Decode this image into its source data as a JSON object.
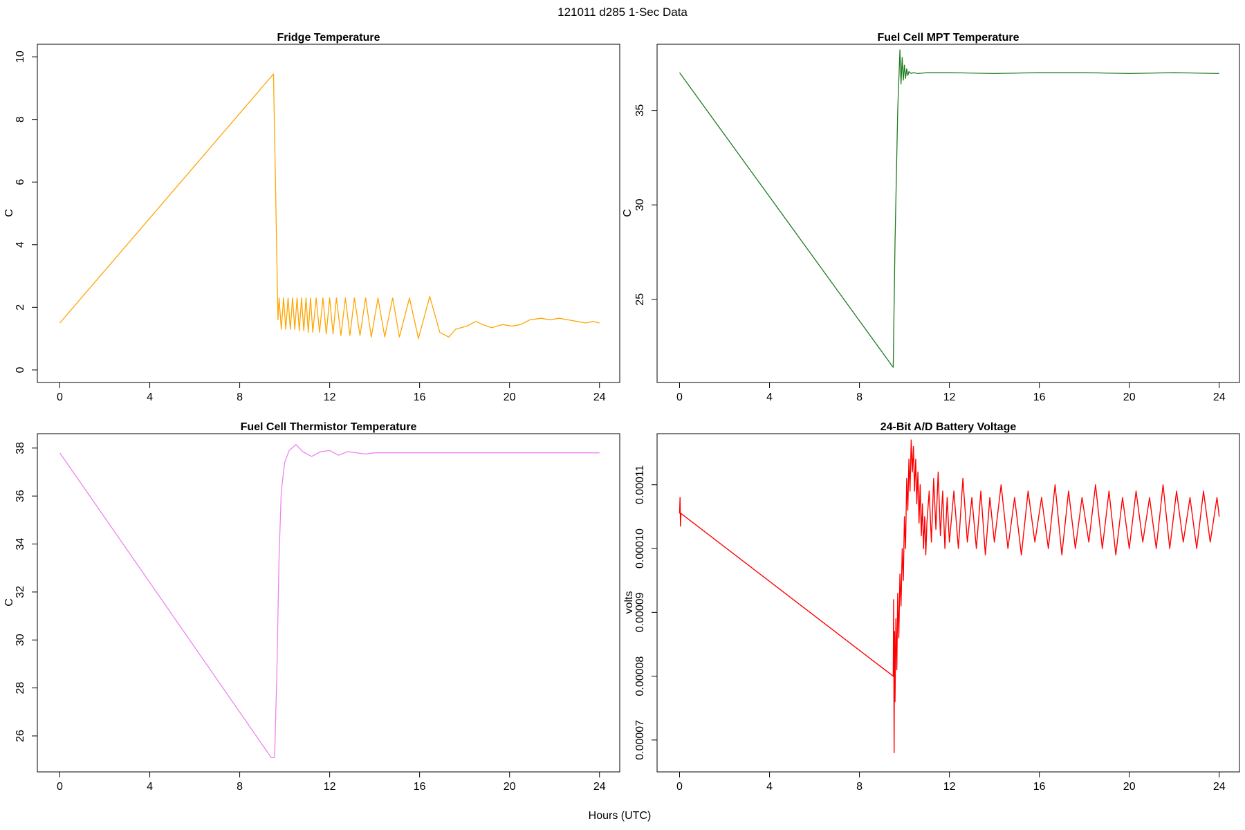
{
  "figure": {
    "title": "121011   d285   1-Sec Data",
    "xlabel": "Hours (UTC)"
  },
  "chart_data": [
    {
      "type": "line",
      "title": "Fridge Temperature",
      "xlabel": "",
      "ylabel": "C",
      "xlim": [
        -1,
        24.9
      ],
      "ylim": [
        -0.4,
        10.4
      ],
      "xticks": [
        0,
        4,
        8,
        12,
        16,
        20,
        24
      ],
      "yticks": [
        0,
        2,
        4,
        6,
        8,
        10
      ],
      "ytick_labels": [
        "0",
        "2",
        "4",
        "6",
        "8",
        "10"
      ],
      "color": "#FFA500",
      "grid": false,
      "series": [
        {
          "x": [
            0,
            9.5,
            9.7,
            9.75,
            9.85,
            9.95,
            10.05,
            10.15,
            10.25,
            10.35,
            10.45,
            10.55,
            10.65,
            10.75,
            10.85,
            10.95,
            11.05,
            11.15,
            11.25,
            11.4,
            11.55,
            11.7,
            11.85,
            12.0,
            12.15,
            12.3,
            12.5,
            12.7,
            12.9,
            13.1,
            13.35,
            13.6,
            13.85,
            14.15,
            14.45,
            14.8,
            15.1,
            15.55,
            15.95,
            16.45,
            16.9,
            17.3,
            17.6,
            18.1,
            18.5,
            18.8,
            19.2,
            19.7,
            20.1,
            20.5,
            20.9,
            21.4,
            21.8,
            22.2,
            22.6,
            23.0,
            23.4,
            23.7,
            24.0
          ],
          "y": [
            1.5,
            9.45,
            1.6,
            2.3,
            1.3,
            2.3,
            1.3,
            2.3,
            1.3,
            2.3,
            1.3,
            2.3,
            1.25,
            2.3,
            1.25,
            2.3,
            1.2,
            2.3,
            1.2,
            2.3,
            1.2,
            2.3,
            1.15,
            2.3,
            1.15,
            2.3,
            1.1,
            2.3,
            1.1,
            2.3,
            1.1,
            2.3,
            1.05,
            2.3,
            1.05,
            2.3,
            1.05,
            2.3,
            1.0,
            2.35,
            1.2,
            1.05,
            1.3,
            1.4,
            1.55,
            1.45,
            1.35,
            1.45,
            1.4,
            1.45,
            1.6,
            1.65,
            1.6,
            1.65,
            1.6,
            1.55,
            1.5,
            1.55,
            1.5
          ]
        }
      ]
    },
    {
      "type": "line",
      "title": "Fuel Cell MPT Temperature",
      "xlabel": "",
      "ylabel": "C",
      "xlim": [
        -1,
        24.9
      ],
      "ylim": [
        20.6,
        38.5
      ],
      "xticks": [
        0,
        4,
        8,
        12,
        16,
        20,
        24
      ],
      "yticks": [
        25,
        30,
        35
      ],
      "ytick_labels": [
        "25",
        "30",
        "35"
      ],
      "color": "#1E7B1E",
      "grid": false,
      "series": [
        {
          "x": [
            0,
            9.5,
            9.58,
            9.7,
            9.8,
            9.85,
            9.9,
            9.95,
            10.0,
            10.05,
            10.1,
            10.15,
            10.2,
            10.3,
            10.4,
            10.6,
            11.0,
            12.0,
            14.0,
            16.0,
            18.0,
            20.0,
            22.0,
            24.0
          ],
          "y": [
            37.0,
            21.4,
            28.0,
            35.0,
            38.2,
            36.4,
            37.8,
            36.6,
            37.4,
            36.7,
            37.2,
            36.85,
            37.05,
            36.95,
            37.0,
            36.95,
            37.0,
            37.0,
            36.95,
            37.0,
            37.0,
            36.95,
            37.0,
            36.95
          ]
        }
      ]
    },
    {
      "type": "line",
      "title": "Fuel Cell Thermistor Temperature",
      "xlabel": "",
      "ylabel": "C",
      "xlim": [
        -1,
        24.9
      ],
      "ylim": [
        24.5,
        38.6
      ],
      "xticks": [
        0,
        4,
        8,
        12,
        16,
        20,
        24
      ],
      "yticks": [
        26,
        28,
        30,
        32,
        34,
        36,
        38
      ],
      "ytick_labels": [
        "26",
        "28",
        "30",
        "32",
        "34",
        "36",
        "38"
      ],
      "color": "#EE82EE",
      "grid": false,
      "series": [
        {
          "x": [
            0,
            9.4,
            9.55,
            9.65,
            9.75,
            9.85,
            10.0,
            10.2,
            10.5,
            10.8,
            11.2,
            11.6,
            12.0,
            12.4,
            12.8,
            13.2,
            13.6,
            14.0,
            14.6,
            15.2,
            16.0,
            18.0,
            20.0,
            22.0,
            24.0
          ],
          "y": [
            37.8,
            25.1,
            25.1,
            28.5,
            33.5,
            36.2,
            37.4,
            37.9,
            38.15,
            37.85,
            37.65,
            37.85,
            37.9,
            37.7,
            37.85,
            37.8,
            37.75,
            37.8,
            37.8,
            37.8,
            37.8,
            37.8,
            37.8,
            37.8,
            37.8
          ]
        }
      ]
    },
    {
      "type": "line",
      "title": "24-Bit A/D Battery Voltage",
      "xlabel": "",
      "ylabel": "volts",
      "xlim": [
        -1,
        24.9
      ],
      "ylim": [
        6.5e-05,
        0.000118
      ],
      "xticks": [
        0,
        4,
        8,
        12,
        16,
        20,
        24
      ],
      "yticks": [
        7e-05,
        8e-05,
        9e-05,
        0.0001,
        0.00011
      ],
      "ytick_labels": [
        "0.00007",
        "0.00008",
        "0.00009",
        "0.00010",
        "0.00011"
      ],
      "color": "#FF0000",
      "grid": false,
      "series": [
        {
          "x": [
            0,
            0.02,
            0.04,
            0.06,
            9.5,
            9.52,
            9.54,
            9.56,
            9.58,
            9.62,
            9.66,
            9.7,
            9.75,
            9.8,
            9.85,
            9.9,
            9.95,
            10.0,
            10.05,
            10.1,
            10.15,
            10.2,
            10.25,
            10.3,
            10.35,
            10.4,
            10.45,
            10.5,
            10.55,
            10.6,
            10.65,
            10.7,
            10.75,
            10.8,
            10.85,
            10.9,
            10.95,
            11.0,
            11.1,
            11.2,
            11.3,
            11.4,
            11.5,
            11.6,
            11.7,
            11.8,
            11.9,
            12.0,
            12.2,
            12.4,
            12.6,
            12.8,
            13.0,
            13.2,
            13.4,
            13.6,
            13.8,
            14.0,
            14.3,
            14.6,
            14.9,
            15.2,
            15.5,
            15.8,
            16.1,
            16.4,
            16.7,
            17.0,
            17.3,
            17.6,
            17.9,
            18.2,
            18.5,
            18.8,
            19.1,
            19.4,
            19.7,
            20.0,
            20.3,
            20.6,
            20.9,
            21.2,
            21.5,
            21.8,
            22.1,
            22.4,
            22.7,
            23.0,
            23.3,
            23.6,
            23.9,
            24.0
          ],
          "y": [
            0.0001055,
            0.000108,
            0.0001035,
            0.0001055,
            8e-05,
            9.2e-05,
            6.8e-05,
            8.7e-05,
            7.6e-05,
            8.9e-05,
            8.1e-05,
            9.3e-05,
            8.6e-05,
            9.6e-05,
            9.1e-05,
            0.0001,
            9.5e-05,
            0.000105,
            0.0001,
            0.000111,
            0.000106,
            0.000114,
            0.000109,
            0.000117,
            0.000112,
            0.000116,
            0.000109,
            0.000114,
            0.000107,
            0.000112,
            0.000104,
            0.00011,
            0.000102,
            0.000107,
            0.0001,
            0.000105,
            9.9e-05,
            0.000104,
            0.000109,
            0.000101,
            0.000111,
            0.000103,
            0.000112,
            0.000102,
            0.000109,
            0.0001,
            0.000108,
            0.000101,
            0.000109,
            0.0001,
            0.000111,
            0.000101,
            0.000108,
            0.0001,
            0.000109,
            9.9e-05,
            0.000108,
            0.000101,
            0.00011,
            0.0001,
            0.000108,
            9.9e-05,
            0.000109,
            0.000101,
            0.000108,
            0.0001,
            0.00011,
            9.9e-05,
            0.000109,
            0.0001,
            0.000108,
            0.000101,
            0.00011,
            0.0001,
            0.000109,
            9.9e-05,
            0.000108,
            0.0001,
            0.000109,
            0.000101,
            0.000108,
            0.0001,
            0.00011,
            0.0001,
            0.000109,
            0.000101,
            0.000108,
            0.0001,
            0.000109,
            0.000101,
            0.000108,
            0.000105
          ]
        }
      ]
    }
  ]
}
